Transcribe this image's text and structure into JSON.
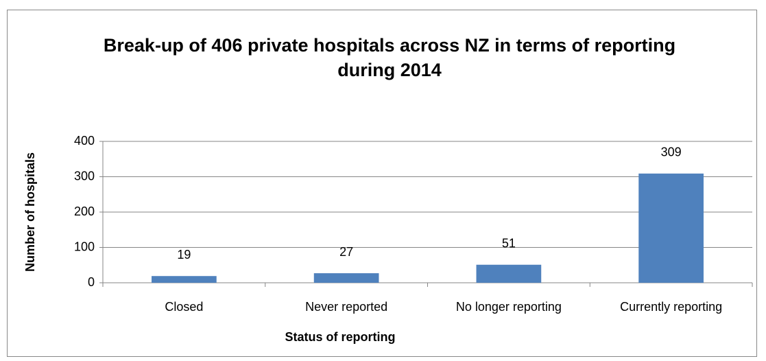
{
  "chart_data": {
    "type": "bar",
    "title": "Break-up of 406 private hospitals across NZ in terms of reporting during 2014",
    "x_label": "Status of reporting",
    "y_label": "Number of hospitals",
    "categories": [
      "Closed",
      "Never reported",
      "No longer reporting",
      "Currently reporting"
    ],
    "values": [
      19,
      27,
      51,
      309
    ],
    "color": "#4f81bd",
    "ylim": [
      0,
      400
    ],
    "yticks": [
      0,
      100,
      200,
      300,
      400
    ],
    "grid": true
  }
}
